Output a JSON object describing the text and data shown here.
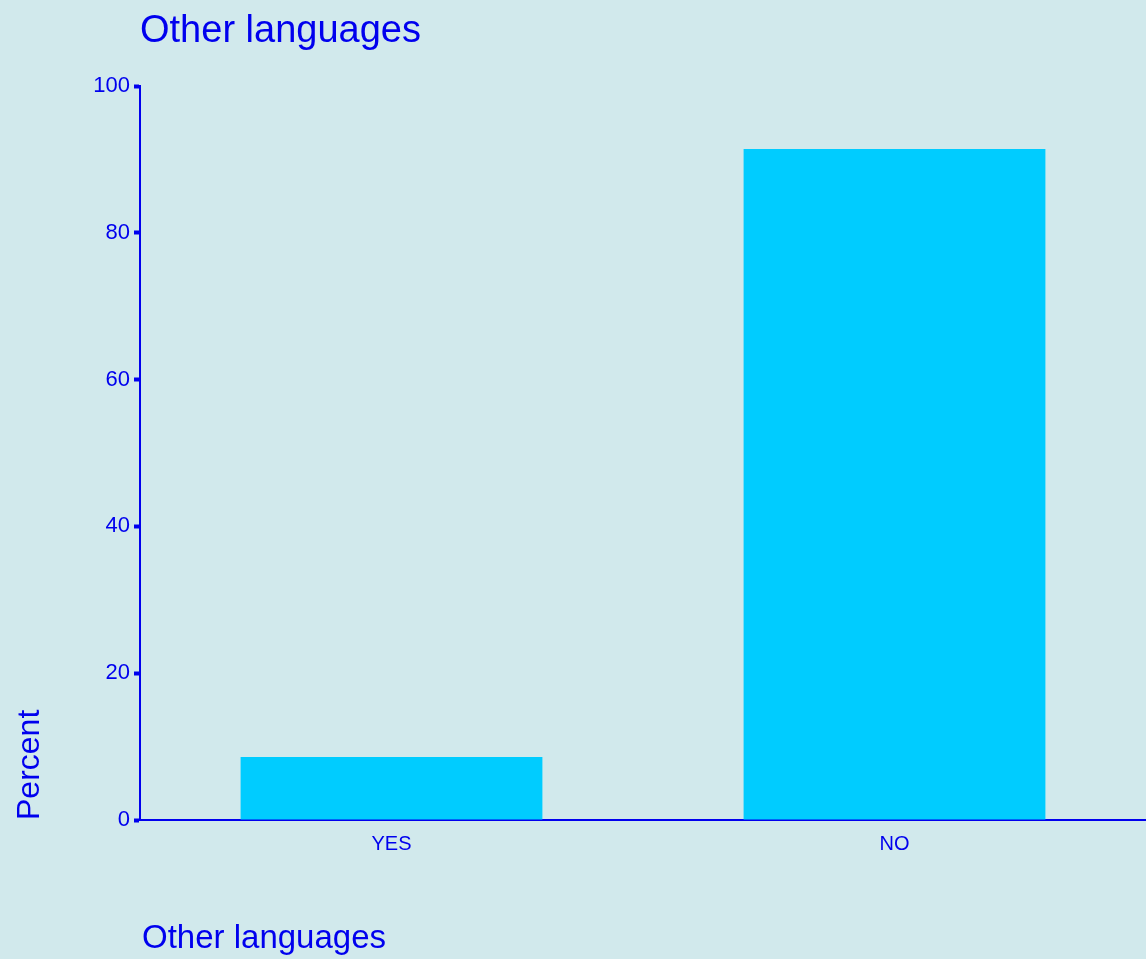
{
  "chart_data": {
    "type": "bar",
    "title": "Other languages",
    "xlabel": "Other languages",
    "ylabel": "Percent",
    "categories": [
      "YES",
      "NO"
    ],
    "values": [
      8.6,
      91.4
    ],
    "color": "#00ccff",
    "ylim": [
      0,
      100
    ],
    "yticks": [
      0,
      20,
      40,
      60,
      80,
      100
    ],
    "grid": false,
    "legend": false
  }
}
